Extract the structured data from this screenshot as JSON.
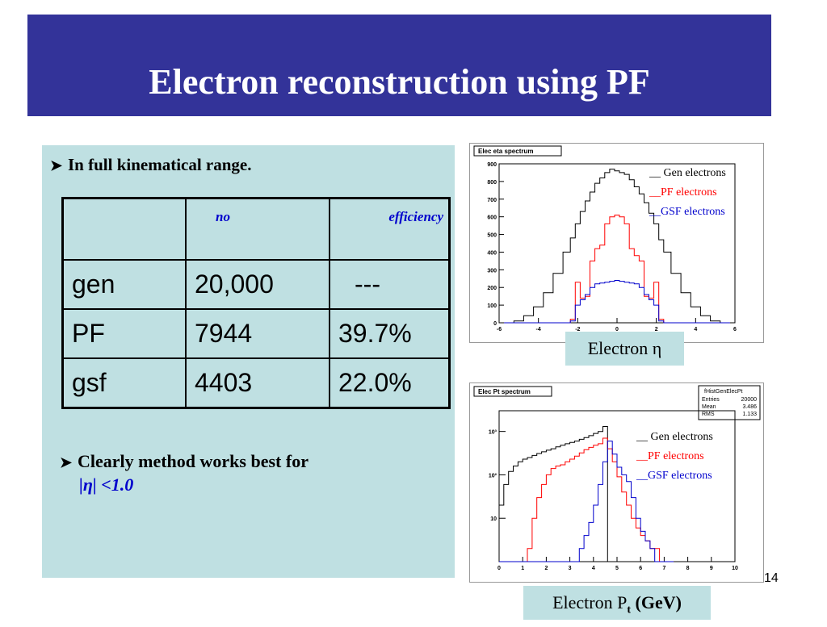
{
  "slide": {
    "title": "Electron reconstruction using PF",
    "bullet1": "In full  kinematical range.",
    "bullet2_line1": "Clearly method works best for",
    "bullet2_line2": "|η| <1.0",
    "page_number": "14",
    "colors": {
      "banner": "#333399",
      "panel": "#bfe0e2",
      "gen": "#000000",
      "pf": "#ff0000",
      "gsf": "#0000cc"
    }
  },
  "table": {
    "headers": [
      "",
      "no",
      "efficiency"
    ],
    "rows": [
      [
        "gen",
        "20,000",
        "---"
      ],
      [
        "PF",
        "7944",
        "39.7%"
      ],
      [
        "gsf",
        "4403",
        "22.0%"
      ]
    ]
  },
  "chart_data": [
    {
      "type": "line",
      "title": "Elec eta spectrum",
      "caption": "Electron η",
      "xlim": [
        -6,
        6
      ],
      "ylim": [
        0,
        900
      ],
      "x_ticks": [
        "-6",
        "-4",
        "-2",
        "0",
        "2",
        "4",
        "6"
      ],
      "y_ticks": [
        "0",
        "100",
        "200",
        "300",
        "400",
        "500",
        "600",
        "700",
        "800",
        "900"
      ],
      "legend": [
        "__ Gen electrons",
        "__PF electrons",
        "__GSF electrons"
      ],
      "x": [
        -5.5,
        -5.0,
        -4.5,
        -4.0,
        -3.5,
        -3.0,
        -2.5,
        -2.25,
        -2.0,
        -1.75,
        -1.5,
        -1.25,
        -1.0,
        -0.75,
        -0.5,
        -0.25,
        0.0,
        0.25,
        0.5,
        0.75,
        1.0,
        1.25,
        1.5,
        1.75,
        2.0,
        2.25,
        2.5,
        3.0,
        3.5,
        4.0,
        4.5,
        5.0,
        5.5
      ],
      "series": [
        {
          "name": "Gen electrons",
          "color": "#000000",
          "values": [
            0,
            10,
            40,
            90,
            170,
            280,
            400,
            480,
            560,
            630,
            690,
            740,
            790,
            820,
            850,
            870,
            860,
            850,
            840,
            810,
            770,
            730,
            680,
            620,
            560,
            470,
            400,
            280,
            170,
            90,
            40,
            10,
            0
          ]
        },
        {
          "name": "PF electrons",
          "color": "#ff0000",
          "values": [
            0,
            0,
            0,
            0,
            0,
            0,
            0,
            20,
            230,
            140,
            150,
            350,
            420,
            440,
            560,
            600,
            610,
            600,
            560,
            420,
            380,
            350,
            150,
            140,
            230,
            20,
            0,
            0,
            0,
            0,
            0,
            0,
            0
          ]
        },
        {
          "name": "GSF electrons",
          "color": "#0000cc",
          "values": [
            0,
            0,
            0,
            0,
            0,
            0,
            0,
            10,
            100,
            130,
            160,
            200,
            220,
            225,
            230,
            235,
            240,
            235,
            230,
            225,
            220,
            200,
            160,
            130,
            100,
            10,
            0,
            0,
            0,
            0,
            0,
            0,
            0
          ]
        }
      ]
    },
    {
      "type": "line",
      "title": "Elec Pt spectrum",
      "caption_main": "Electron P",
      "caption_sub": "t",
      "caption_unit": " (GeV)",
      "log_y": true,
      "xlim": [
        0,
        10
      ],
      "ylim": [
        1,
        3000
      ],
      "x_ticks": [
        "0",
        "1",
        "2",
        "3",
        "4",
        "5",
        "6",
        "7",
        "8",
        "9",
        "10"
      ],
      "y_ticks": [
        {
          "label": "10",
          "value": 10
        },
        {
          "label": "10²",
          "value": 100
        },
        {
          "label": "10³",
          "value": 1000
        }
      ],
      "stats": {
        "name": "fHistGenElecPt",
        "entries_label": "Entries",
        "entries": "20000",
        "mean_label": "Mean",
        "mean": "3.486",
        "rms_label": "RMS",
        "rms": "1.133"
      },
      "legend": [
        "__ Gen electrons",
        "__PF electrons",
        "__GSF electrons"
      ],
      "x": [
        0.1,
        0.3,
        0.5,
        0.7,
        0.9,
        1.1,
        1.3,
        1.5,
        1.7,
        1.9,
        2.1,
        2.3,
        2.5,
        2.7,
        2.9,
        3.1,
        3.3,
        3.5,
        3.7,
        3.9,
        4.1,
        4.3,
        4.5,
        4.7,
        4.9,
        5.1,
        5.3,
        5.5,
        5.7,
        5.9,
        6.1,
        6.3,
        6.5,
        6.7,
        6.9,
        7.1,
        7.3
      ],
      "series": [
        {
          "name": "Gen electrons",
          "color": "#000000",
          "values": [
            20,
            60,
            120,
            160,
            200,
            230,
            250,
            280,
            310,
            340,
            370,
            400,
            440,
            480,
            520,
            560,
            600,
            660,
            720,
            800,
            900,
            1000,
            1300,
            1,
            1,
            1,
            1,
            1,
            1,
            1,
            1,
            1,
            1,
            1,
            1,
            1,
            1
          ]
        },
        {
          "name": "PF electrons",
          "color": "#ff0000",
          "values": [
            1,
            1,
            1,
            1,
            1,
            1,
            2,
            10,
            30,
            60,
            100,
            140,
            160,
            170,
            200,
            230,
            270,
            320,
            380,
            430,
            480,
            520,
            700,
            400,
            200,
            90,
            40,
            20,
            10,
            6,
            4,
            3,
            2,
            2,
            1,
            1,
            1
          ]
        },
        {
          "name": "GSF electrons",
          "color": "#0000cc",
          "values": [
            1,
            1,
            1,
            1,
            1,
            1,
            1,
            1,
            1,
            1,
            1,
            1,
            1,
            1,
            1,
            1,
            1,
            2,
            4,
            8,
            20,
            60,
            200,
            600,
            300,
            150,
            100,
            70,
            30,
            10,
            5,
            3,
            2,
            1,
            1,
            1,
            1
          ]
        }
      ]
    }
  ]
}
